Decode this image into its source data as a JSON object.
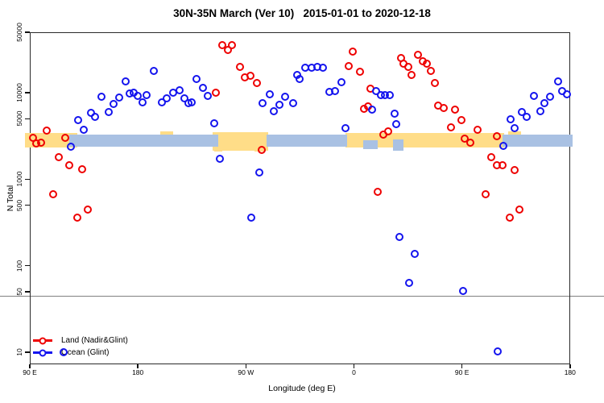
{
  "title": "30N-35N March (Ver 10)   2015-01-01 to 2020-12-18",
  "legend": {
    "items": [
      {
        "label": "Land (Nadir&Glint)",
        "color": "#ee0000"
      },
      {
        "label": "Ocean (Glint)",
        "color": "#1414ee"
      }
    ]
  },
  "chart_data": {
    "type": "scatter",
    "title": "30N-35N March (Ver 10)   2015-01-01 to 2020-12-18",
    "xlabel": "Longitude (deg E)",
    "ylabel": "N Total",
    "grid": false,
    "legend_position": "bottom-left",
    "x_axis": {
      "range": [
        90,
        540
      ],
      "note": "longitude wraps eastward from 90E",
      "ticks": [
        {
          "lon": 90,
          "label": "90 E"
        },
        {
          "lon": 180,
          "label": "180"
        },
        {
          "lon": 270,
          "label": "90 W"
        },
        {
          "lon": 360,
          "label": "0"
        },
        {
          "lon": 450,
          "label": "90 E"
        },
        {
          "lon": 540,
          "label": "180"
        }
      ]
    },
    "y_axis": {
      "scale": "log",
      "range": [
        7,
        50000
      ],
      "ticks": [
        {
          "n": 50000,
          "label": "50000"
        },
        {
          "n": 10000,
          "label": "10000"
        },
        {
          "n": 5000,
          "label": "5000"
        },
        {
          "n": 1000,
          "label": "1000"
        },
        {
          "n": 500,
          "label": "500"
        },
        {
          "n": 100,
          "label": "100"
        },
        {
          "n": 50,
          "label": "50"
        },
        {
          "n": 10,
          "label": "10"
        }
      ]
    },
    "reference_line_n": 45,
    "colors": {
      "land": "#ee0000",
      "ocean": "#1414ee",
      "band_yellow": "#ffdd88",
      "band_blue": "#a9c1e3"
    },
    "bands": [
      {
        "color": "yellow",
        "lon": [
          85.3,
          129.0
        ],
        "n": [
          2380,
          3500
        ]
      },
      {
        "color": "yellow",
        "lon": [
          241.5,
          288.0
        ],
        "n": [
          2180,
          3600
        ]
      },
      {
        "color": "yellow",
        "lon": [
          352.0,
          484.5
        ],
        "n": [
          2380,
          3500
        ]
      },
      {
        "color": "yellow",
        "lon": [
          242.9,
          249.6
        ],
        "n": [
          2130,
          2450
        ]
      },
      {
        "color": "yellow",
        "lon": [
          276.5,
          284.5
        ],
        "n": [
          2130,
          2450
        ]
      },
      {
        "color": "yellow",
        "lon": [
          198.0,
          209.0
        ],
        "n": [
          3360,
          3640
        ]
      },
      {
        "color": "yellow",
        "lon": [
          487.5,
          498.5
        ],
        "n": [
          3300,
          3680
        ]
      },
      {
        "color": "blue",
        "lon": [
          122.0,
          246.5
        ],
        "n": [
          2430,
          3360
        ]
      },
      {
        "color": "blue",
        "lon": [
          286.5,
          353.5
        ],
        "n": [
          2430,
          3360
        ]
      },
      {
        "color": "blue",
        "lon": [
          483.0,
          541.5
        ],
        "n": [
          2430,
          3360
        ]
      },
      {
        "color": "blue",
        "lon": [
          367.0,
          379.0
        ],
        "n": [
          2280,
          2890
        ]
      },
      {
        "color": "blue",
        "lon": [
          392.0,
          400.5
        ],
        "n": [
          2180,
          2960
        ]
      }
    ],
    "series": [
      {
        "name": "Land (Nadir&Glint)",
        "color": "#ee0000",
        "points": [
          [
            92.0,
            3080
          ],
          [
            94.5,
            2670
          ],
          [
            98.5,
            2710
          ],
          [
            103.5,
            3740
          ],
          [
            119.0,
            3080
          ],
          [
            113.5,
            1840
          ],
          [
            122.0,
            1490
          ],
          [
            133.0,
            1340
          ],
          [
            109.0,
            690
          ],
          [
            137.5,
            460
          ],
          [
            129.0,
            370
          ],
          [
            244.5,
            10300
          ],
          [
            249.5,
            36500
          ],
          [
            254.5,
            32000
          ],
          [
            257.5,
            36500
          ],
          [
            264.5,
            20400
          ],
          [
            268.5,
            15500
          ],
          [
            273.0,
            16100
          ],
          [
            278.5,
            13300
          ],
          [
            282.5,
            2230
          ],
          [
            355.0,
            20900
          ],
          [
            358.5,
            30700
          ],
          [
            364.5,
            18000
          ],
          [
            373.0,
            11500
          ],
          [
            367.5,
            6690
          ],
          [
            371.0,
            7130
          ],
          [
            384.0,
            3350
          ],
          [
            388.0,
            3660
          ],
          [
            379.0,
            730
          ],
          [
            398.5,
            25900
          ],
          [
            400.5,
            22300
          ],
          [
            404.5,
            20400
          ],
          [
            407.0,
            16500
          ],
          [
            413.0,
            28200
          ],
          [
            416.5,
            23800
          ],
          [
            420.0,
            22300
          ],
          [
            423.5,
            18300
          ],
          [
            426.5,
            13300
          ],
          [
            429.5,
            7280
          ],
          [
            434.0,
            6830
          ],
          [
            440.0,
            4080
          ],
          [
            443.5,
            6550
          ],
          [
            449.0,
            4940
          ],
          [
            451.5,
            3010
          ],
          [
            456.0,
            2710
          ],
          [
            462.0,
            3820
          ],
          [
            478.5,
            3220
          ],
          [
            473.5,
            1840
          ],
          [
            478.5,
            1490
          ],
          [
            483.0,
            1490
          ],
          [
            493.0,
            1310
          ],
          [
            469.0,
            690
          ],
          [
            497.0,
            460
          ],
          [
            489.0,
            370
          ]
        ]
      },
      {
        "name": "Ocean (Glint)",
        "color": "#1414ee",
        "points": [
          [
            129.5,
            4940
          ],
          [
            134.5,
            3820
          ],
          [
            140.5,
            5990
          ],
          [
            143.5,
            5390
          ],
          [
            149.0,
            9210
          ],
          [
            155.0,
            6130
          ],
          [
            159.0,
            7580
          ],
          [
            164.0,
            9010
          ],
          [
            169.0,
            13900
          ],
          [
            172.5,
            10100
          ],
          [
            176.0,
            10300
          ],
          [
            179.0,
            9420
          ],
          [
            183.0,
            7920
          ],
          [
            186.5,
            9630
          ],
          [
            192.5,
            18300
          ],
          [
            199.5,
            7920
          ],
          [
            203.5,
            8830
          ],
          [
            208.5,
            10300
          ],
          [
            214.0,
            10900
          ],
          [
            218.0,
            8830
          ],
          [
            221.5,
            7760
          ],
          [
            224.5,
            7920
          ],
          [
            228.0,
            14800
          ],
          [
            233.5,
            11700
          ],
          [
            237.5,
            9420
          ],
          [
            243.0,
            4540
          ],
          [
            247.5,
            1770
          ],
          [
            273.8,
            370
          ],
          [
            280.5,
            1230
          ],
          [
            283.5,
            7760
          ],
          [
            289.0,
            9840
          ],
          [
            292.5,
            6270
          ],
          [
            297.5,
            7430
          ],
          [
            302.0,
            9210
          ],
          [
            308.5,
            7760
          ],
          [
            312.0,
            16500
          ],
          [
            314.0,
            14800
          ],
          [
            318.5,
            20000
          ],
          [
            324.0,
            20000
          ],
          [
            329.0,
            20400
          ],
          [
            333.5,
            20000
          ],
          [
            339.0,
            10500
          ],
          [
            343.5,
            10700
          ],
          [
            349.0,
            13600
          ],
          [
            352.0,
            3990
          ],
          [
            374.5,
            6550
          ],
          [
            377.5,
            10700
          ],
          [
            382.0,
            9630
          ],
          [
            385.0,
            9630
          ],
          [
            389.0,
            9630
          ],
          [
            393.0,
            5880
          ],
          [
            394.5,
            4440
          ],
          [
            397.0,
            220
          ],
          [
            410.0,
            141
          ],
          [
            405.0,
            65
          ],
          [
            450.0,
            52
          ],
          [
            479.0,
            10.4
          ],
          [
            117.5,
            10.3
          ],
          [
            123.5,
            2440
          ],
          [
            483.5,
            2490
          ],
          [
            489.5,
            5060
          ],
          [
            493.0,
            3990
          ],
          [
            499.0,
            6130
          ],
          [
            503.0,
            5390
          ],
          [
            509.0,
            9420
          ],
          [
            514.5,
            6270
          ],
          [
            518.0,
            7760
          ],
          [
            523.0,
            9210
          ],
          [
            529.5,
            13900
          ],
          [
            532.5,
            10700
          ],
          [
            536.5,
            9840
          ]
        ]
      }
    ]
  }
}
